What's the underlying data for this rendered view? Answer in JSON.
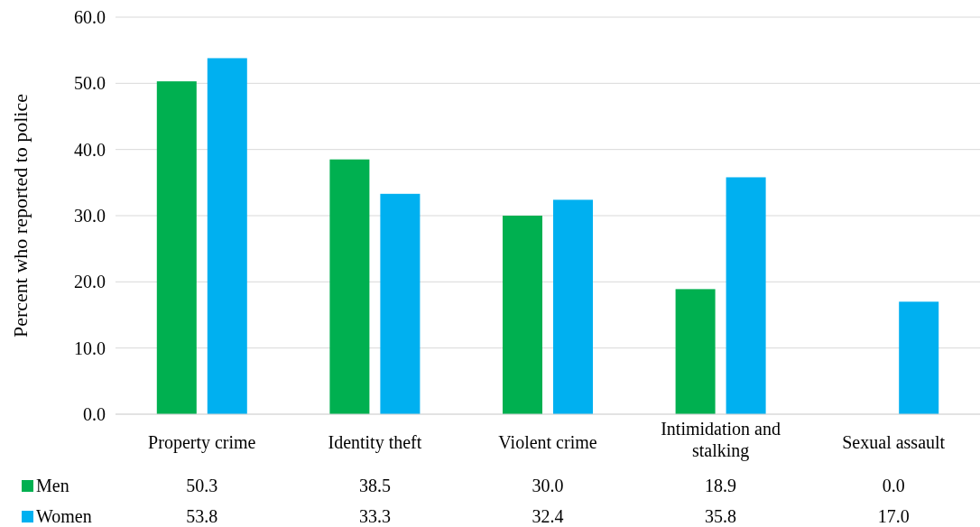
{
  "chart_data": {
    "type": "bar",
    "ylabel": "Percent who reported to police",
    "categories": [
      "Property crime",
      "Identity theft",
      "Violent crime",
      "Intimidation and stalking",
      "Sexual assault"
    ],
    "series": [
      {
        "name": "Men",
        "color": "#00b050",
        "values": [
          50.3,
          38.5,
          30.0,
          18.9,
          0.0
        ],
        "value_labels": [
          "50.3",
          "38.5",
          "30.0",
          "18.9",
          "0.0"
        ]
      },
      {
        "name": "Women",
        "color": "#00b0f0",
        "values": [
          53.8,
          33.3,
          32.4,
          35.8,
          17.0
        ],
        "value_labels": [
          "53.8",
          "33.3",
          "32.4",
          "35.8",
          "17.0"
        ]
      }
    ],
    "ylim": [
      0,
      60
    ],
    "yticks": [
      {
        "value": 0,
        "label": "0.0"
      },
      {
        "value": 10,
        "label": "10.0"
      },
      {
        "value": 20,
        "label": "20.0"
      },
      {
        "value": 30,
        "label": "30.0"
      },
      {
        "value": 40,
        "label": "40.0"
      },
      {
        "value": 50,
        "label": "50.0"
      },
      {
        "value": 60,
        "label": "60.0"
      }
    ],
    "grid": "y",
    "legend": "bottom"
  }
}
